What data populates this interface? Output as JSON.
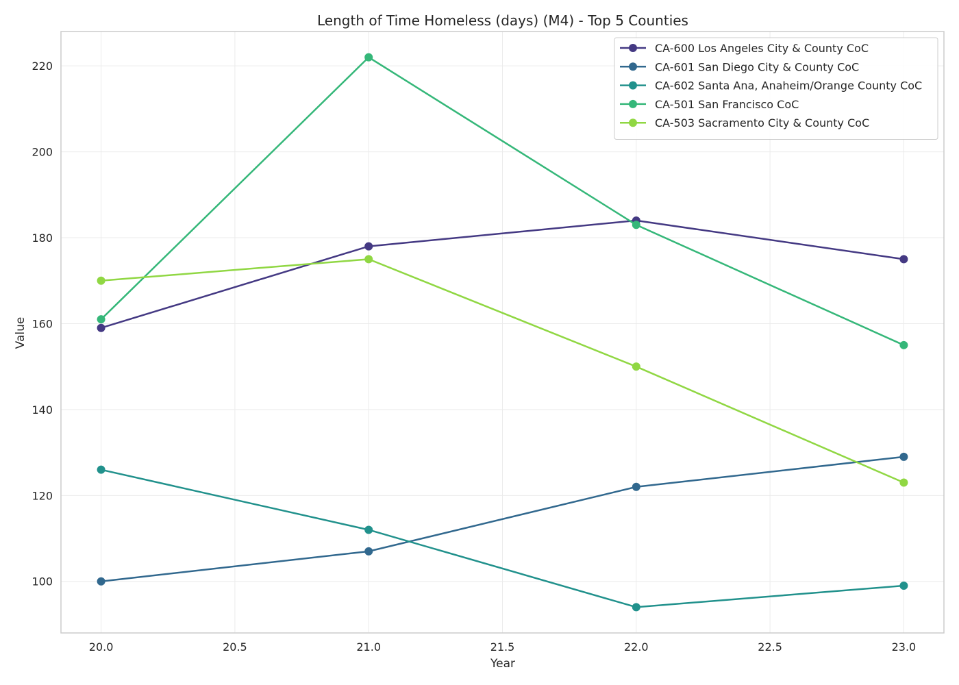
{
  "chart_data": {
    "type": "line",
    "title": "Length of Time Homeless (days) (M4) - Top 5 Counties",
    "xlabel": "Year",
    "ylabel": "Value",
    "x": [
      20.0,
      21.0,
      22.0,
      23.0
    ],
    "xlim": [
      19.85,
      23.15
    ],
    "ylim": [
      88,
      228
    ],
    "xticks": [
      20.0,
      20.5,
      21.0,
      21.5,
      22.0,
      22.5,
      23.0
    ],
    "xtick_labels": [
      "20.0",
      "20.5",
      "21.0",
      "21.5",
      "22.0",
      "22.5",
      "23.0"
    ],
    "yticks": [
      100,
      120,
      140,
      160,
      180,
      200,
      220
    ],
    "ytick_labels": [
      "100",
      "120",
      "140",
      "160",
      "180",
      "200",
      "220"
    ],
    "grid": true,
    "legend_position": "top-right",
    "series": [
      {
        "name": "CA-600 Los Angeles City & County CoC",
        "color": "#443983",
        "values": [
          159,
          178,
          184,
          175
        ]
      },
      {
        "name": "CA-601 San Diego City & County CoC",
        "color": "#31688e",
        "values": [
          100,
          107,
          122,
          129
        ]
      },
      {
        "name": "CA-602 Santa Ana, Anaheim/Orange County CoC",
        "color": "#21918c",
        "values": [
          126,
          112,
          94,
          99
        ]
      },
      {
        "name": "CA-501 San Francisco CoC",
        "color": "#35b779",
        "values": [
          161,
          222,
          183,
          155
        ]
      },
      {
        "name": "CA-503 Sacramento City & County CoC",
        "color": "#90d743",
        "values": [
          170,
          175,
          150,
          123
        ]
      }
    ]
  }
}
